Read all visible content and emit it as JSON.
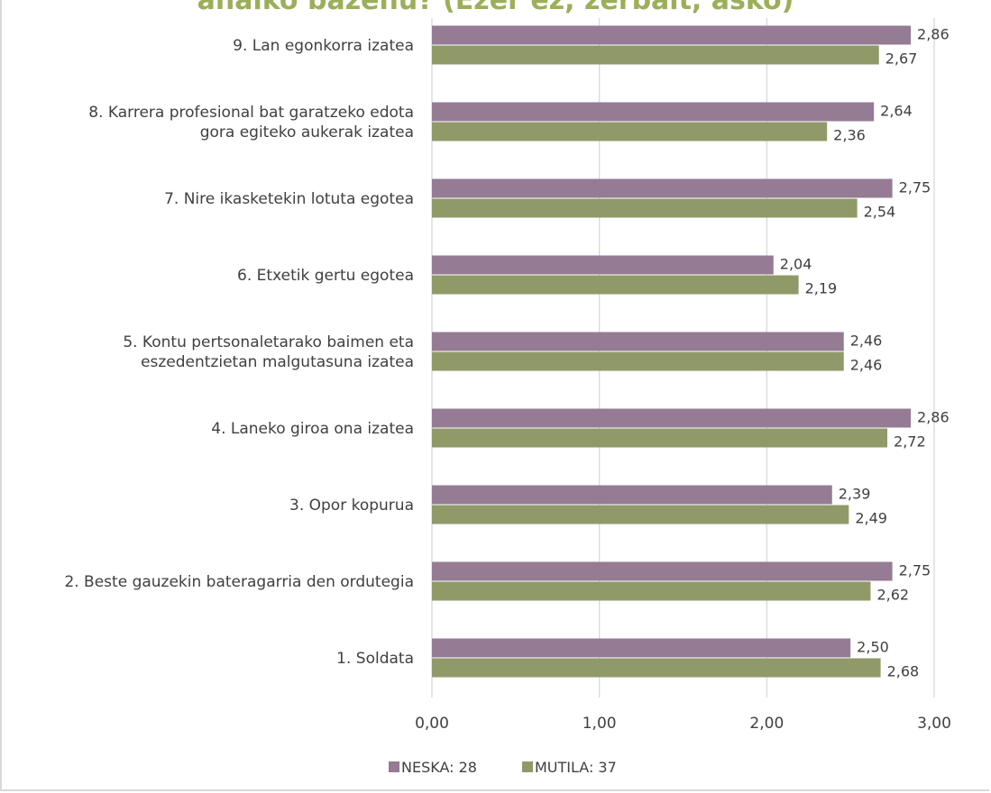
{
  "chart_data": {
    "type": "bar",
    "orientation": "horizontal",
    "title": "anaiko bazenu? (Ezer ez, zerbait, asko)",
    "title_color": "#9BAF58",
    "categories": [
      "1. Soldata",
      "2. Beste gauzekin bateragarria den ordutegia",
      "3. Opor kopurua",
      "4. Laneko giroa ona izatea",
      "5. Kontu pertsonaletarako baimen eta eszedentzietan malgutasuna izatea",
      "6. Etxetik gertu egotea",
      "7. Nire ikasketekin lotuta egotea",
      "8. Karrera profesional bat garatzeko edota gora egiteko aukerak izatea",
      "9. Lan egonkorra izatea"
    ],
    "category_lines": [
      [
        "1. Soldata"
      ],
      [
        "2. Beste gauzekin bateragarria den ordutegia"
      ],
      [
        "3. Opor kopurua"
      ],
      [
        "4. Laneko giroa ona izatea"
      ],
      [
        "5. Kontu pertsonaletarako baimen eta",
        "eszedentzietan malgutasuna izatea"
      ],
      [
        "6. Etxetik gertu egotea"
      ],
      [
        "7. Nire ikasketekin lotuta egotea"
      ],
      [
        "8. Karrera profesional bat garatzeko edota",
        "gora egiteko aukerak izatea"
      ],
      [
        "9. Lan egonkorra izatea"
      ]
    ],
    "series": [
      {
        "name": "NESKA: 28",
        "color": "#957B94",
        "values": [
          2.5,
          2.75,
          2.39,
          2.86,
          2.46,
          2.04,
          2.75,
          2.64,
          2.86
        ],
        "labels": [
          "2,50",
          "2,75",
          "2,39",
          "2,86",
          "2,46",
          "2,04",
          "2,75",
          "2,64",
          "2,86"
        ]
      },
      {
        "name": "MUTILA: 37",
        "color": "#8F9A68",
        "values": [
          2.68,
          2.62,
          2.49,
          2.72,
          2.46,
          2.19,
          2.54,
          2.36,
          2.67
        ],
        "labels": [
          "2,68",
          "2,62",
          "2,49",
          "2,72",
          "2,46",
          "2,19",
          "2,54",
          "2,36",
          "2,67"
        ]
      }
    ],
    "xlim": [
      0,
      3
    ],
    "xticks": [
      0,
      1,
      2,
      3
    ],
    "xtick_labels": [
      "0,00",
      "1,00",
      "2,00",
      "3,00"
    ],
    "grid": "vertical",
    "legend_position": "bottom"
  }
}
